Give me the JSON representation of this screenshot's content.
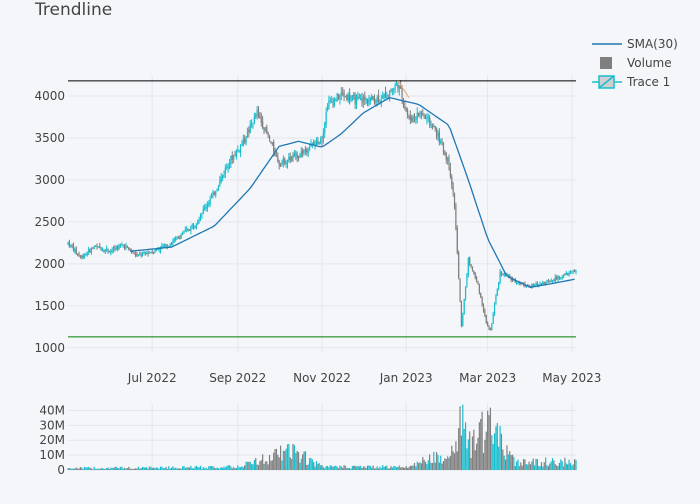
{
  "title": "Trendline",
  "legend": [
    {
      "label": "SMA(30)",
      "kind": "line",
      "color": "#1f77b4"
    },
    {
      "label": "Volume",
      "kind": "box",
      "color": "#7f7f7f"
    },
    {
      "label": "Trace 1",
      "kind": "candle",
      "color": "#17becf"
    }
  ],
  "colors": {
    "increasing": "#17becf",
    "decreasing": "#7f7f7f",
    "sma": "#1f77b4",
    "hline_top": "#000000",
    "hline_bottom": "#008000",
    "trend_segment": "#e8a56c",
    "grid": "#e3e6ef",
    "background": "#f5f6fa"
  },
  "chart_data": {
    "type": "candlestick",
    "title": "Trendline",
    "x_tick_labels": [
      "Jul 2022",
      "Sep 2022",
      "Nov 2022",
      "Jan 2023",
      "Mar 2023",
      "May 2023"
    ],
    "x_tick_dates": [
      "2022-07-01",
      "2022-09-01",
      "2022-11-01",
      "2023-01-01",
      "2023-03-01",
      "2023-05-01"
    ],
    "x_range": [
      "2022-05-01",
      "2023-05-04"
    ],
    "price_ylim": [
      950,
      4250
    ],
    "price_ticks": [
      1000,
      1500,
      2000,
      2500,
      3000,
      3500,
      4000
    ],
    "volume_ylim": [
      0,
      45
    ],
    "volume_ticks": [
      0,
      10,
      20,
      30,
      40
    ],
    "volume_tick_labels": [
      "0",
      "10M",
      "20M",
      "30M",
      "40M"
    ],
    "horizontal_lines": [
      {
        "y": 4180,
        "color": "#000000"
      },
      {
        "y": 1130,
        "color": "#008000"
      }
    ],
    "trend_segment": {
      "x": [
        "2022-12-26",
        "2023-01-03"
      ],
      "y": [
        4180,
        3980
      ]
    },
    "price_anchors": [
      {
        "date": "2022-05-01",
        "close": 2250
      },
      {
        "date": "2022-05-10",
        "close": 2080
      },
      {
        "date": "2022-05-20",
        "close": 2200
      },
      {
        "date": "2022-06-01",
        "close": 2160
      },
      {
        "date": "2022-06-10",
        "close": 2230
      },
      {
        "date": "2022-06-20",
        "close": 2090
      },
      {
        "date": "2022-07-01",
        "close": 2150
      },
      {
        "date": "2022-07-15",
        "close": 2250
      },
      {
        "date": "2022-08-01",
        "close": 2480
      },
      {
        "date": "2022-08-15",
        "close": 2850
      },
      {
        "date": "2022-08-25",
        "close": 3200
      },
      {
        "date": "2022-09-05",
        "close": 3450
      },
      {
        "date": "2022-09-15",
        "close": 3800
      },
      {
        "date": "2022-09-22",
        "close": 3550
      },
      {
        "date": "2022-10-01",
        "close": 3200
      },
      {
        "date": "2022-10-15",
        "close": 3300
      },
      {
        "date": "2022-11-01",
        "close": 3500
      },
      {
        "date": "2022-11-05",
        "close": 3900
      },
      {
        "date": "2022-11-15",
        "close": 4020
      },
      {
        "date": "2022-11-25",
        "close": 3950
      },
      {
        "date": "2022-12-05",
        "close": 3960
      },
      {
        "date": "2022-12-15",
        "close": 3980
      },
      {
        "date": "2022-12-26",
        "close": 4150
      },
      {
        "date": "2023-01-03",
        "close": 3720
      },
      {
        "date": "2023-01-12",
        "close": 3800
      },
      {
        "date": "2023-01-22",
        "close": 3600
      },
      {
        "date": "2023-02-01",
        "close": 3200
      },
      {
        "date": "2023-02-05",
        "close": 2700
      },
      {
        "date": "2023-02-10",
        "close": 1250
      },
      {
        "date": "2023-02-15",
        "close": 2050
      },
      {
        "date": "2023-02-22",
        "close": 1750
      },
      {
        "date": "2023-02-28",
        "close": 1300
      },
      {
        "date": "2023-03-03",
        "close": 1200
      },
      {
        "date": "2023-03-10",
        "close": 1900
      },
      {
        "date": "2023-03-20",
        "close": 1800
      },
      {
        "date": "2023-04-01",
        "close": 1730
      },
      {
        "date": "2023-04-15",
        "close": 1800
      },
      {
        "date": "2023-05-04",
        "close": 1920
      }
    ],
    "sma_anchors": [
      {
        "date": "2022-06-15",
        "value": 2150
      },
      {
        "date": "2022-07-15",
        "value": 2200
      },
      {
        "date": "2022-08-15",
        "value": 2450
      },
      {
        "date": "2022-09-10",
        "value": 2900
      },
      {
        "date": "2022-10-01",
        "value": 3400
      },
      {
        "date": "2022-10-15",
        "value": 3460
      },
      {
        "date": "2022-11-01",
        "value": 3390
      },
      {
        "date": "2022-11-15",
        "value": 3550
      },
      {
        "date": "2022-12-01",
        "value": 3800
      },
      {
        "date": "2022-12-20",
        "value": 3980
      },
      {
        "date": "2023-01-10",
        "value": 3900
      },
      {
        "date": "2023-02-01",
        "value": 3650
      },
      {
        "date": "2023-02-15",
        "value": 3000
      },
      {
        "date": "2023-03-01",
        "value": 2300
      },
      {
        "date": "2023-03-15",
        "value": 1850
      },
      {
        "date": "2023-04-01",
        "value": 1720
      },
      {
        "date": "2023-04-15",
        "value": 1760
      },
      {
        "date": "2023-05-04",
        "value": 1820
      }
    ],
    "volume_anchors": [
      {
        "date": "2022-05-01",
        "value": 1.5
      },
      {
        "date": "2022-07-01",
        "value": 1.8
      },
      {
        "date": "2022-09-01",
        "value": 2.5
      },
      {
        "date": "2022-10-10",
        "value": 15
      },
      {
        "date": "2022-11-01",
        "value": 2.5
      },
      {
        "date": "2023-01-01",
        "value": 2.5
      },
      {
        "date": "2023-02-05",
        "value": 15
      },
      {
        "date": "2023-02-10",
        "value": 44
      },
      {
        "date": "2023-02-15",
        "value": 19
      },
      {
        "date": "2023-03-02",
        "value": 34
      },
      {
        "date": "2023-03-08",
        "value": 25
      },
      {
        "date": "2023-03-20",
        "value": 7
      },
      {
        "date": "2023-05-04",
        "value": 6
      }
    ]
  }
}
